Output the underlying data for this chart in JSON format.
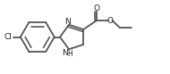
{
  "bg_color": "#ffffff",
  "lc": "#555555",
  "lw": 1.3,
  "fs": 6.5,
  "xlim": [
    0,
    10.5
  ],
  "ylim": [
    0,
    4.6
  ]
}
